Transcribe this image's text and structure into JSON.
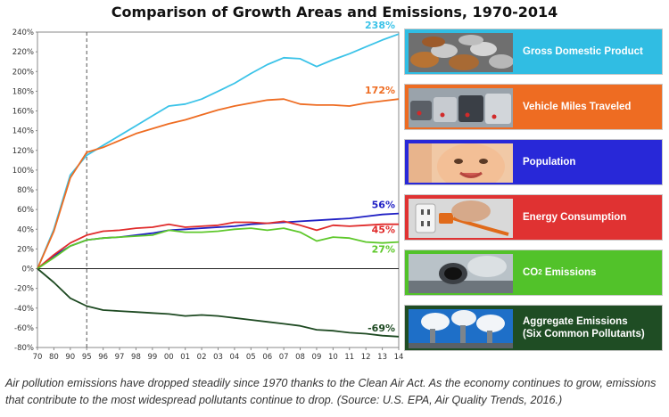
{
  "chart_data": {
    "type": "line",
    "title": "Comparison of Growth Areas and Emissions, 1970-2014",
    "xlabel": "",
    "ylabel": "",
    "x": [
      "70",
      "80",
      "90",
      "95",
      "96",
      "97",
      "98",
      "99",
      "00",
      "01",
      "02",
      "03",
      "04",
      "05",
      "06",
      "07",
      "08",
      "09",
      "10",
      "11",
      "12",
      "13",
      "14"
    ],
    "ylim": [
      -80,
      240
    ],
    "yticks": [
      "-80%",
      "-60%",
      "-40%",
      "-20%",
      "0%",
      "20%",
      "40%",
      "60%",
      "80%",
      "100%",
      "120%",
      "140%",
      "160%",
      "180%",
      "200%",
      "220%",
      "240%"
    ],
    "reference_line_x": "95",
    "grid": false,
    "legend_position": "right",
    "series": [
      {
        "name": "Gross Domestic Product",
        "color": "#3bc3e8",
        "end_label": "238%",
        "values": [
          0,
          40,
          95,
          115,
          125,
          135,
          145,
          155,
          165,
          167,
          172,
          180,
          188,
          198,
          207,
          214,
          213,
          205,
          212,
          218,
          225,
          232,
          238
        ]
      },
      {
        "name": "Vehicle Miles Traveled",
        "color": "#ee6c22",
        "end_label": "172%",
        "values": [
          0,
          38,
          92,
          118,
          123,
          130,
          137,
          142,
          147,
          151,
          156,
          161,
          165,
          168,
          171,
          172,
          167,
          166,
          166,
          165,
          168,
          170,
          172
        ]
      },
      {
        "name": "Population",
        "color": "#1f1fc4",
        "end_label": "56%",
        "values": [
          0,
          13,
          23,
          29,
          31,
          32,
          34,
          36,
          39,
          40,
          41,
          42,
          43,
          45,
          46,
          47,
          48,
          49,
          50,
          51,
          53,
          55,
          56
        ]
      },
      {
        "name": "Energy Consumption",
        "color": "#e02b2b",
        "end_label": "45%",
        "values": [
          0,
          14,
          26,
          34,
          38,
          39,
          41,
          42,
          45,
          42,
          43,
          44,
          47,
          47,
          46,
          48,
          44,
          39,
          44,
          43,
          44,
          45,
          45
        ]
      },
      {
        "name": "CO2 Emissions",
        "color": "#5ec82b",
        "end_label": "27%",
        "values": [
          0,
          11,
          23,
          29,
          31,
          32,
          33,
          34,
          39,
          37,
          37,
          38,
          40,
          41,
          39,
          41,
          37,
          28,
          32,
          31,
          27,
          26,
          27
        ]
      },
      {
        "name": "Aggregate Emissions (Six Common Pollutants)",
        "color": "#1e4a22",
        "end_label": "-69%",
        "values": [
          0,
          -14,
          -30,
          -38,
          -42,
          -43,
          -44,
          -45,
          -46,
          -48,
          -47,
          -48,
          -50,
          -52,
          -54,
          -56,
          -58,
          -62,
          -63,
          -65,
          -66,
          -68,
          -69
        ]
      }
    ]
  },
  "legend": {
    "items": [
      {
        "label": "Gross Domestic Product",
        "bg": "#30bde3",
        "photo": "coins-photo"
      },
      {
        "label": "Vehicle Miles Traveled",
        "bg": "#ee6c22",
        "photo": "traffic-photo"
      },
      {
        "label": "Population",
        "bg": "#2828d8",
        "photo": "baby-photo"
      },
      {
        "label": "Energy Consumption",
        "bg": "#e03232",
        "photo": "power-plug-photo"
      },
      {
        "label_main": "CO",
        "label_sub": "2",
        "label_rest": " Emissions",
        "bg": "#52c22a",
        "photo": "exhaust-pipe-photo"
      },
      {
        "label_line1": "Aggregate Emissions",
        "label_line2": "(Six Common Pollutants)",
        "bg": "#1f4d24",
        "photo": "smokestacks-photo"
      }
    ]
  },
  "caption": "Air pollution emissions have dropped steadily since 1970 thanks to the Clean Air Act. As the economy continues to grow, emissions that contribute to the most widespread pollutants continue to drop. (Source: U.S. EPA, Air Quality Trends, 2016.)"
}
